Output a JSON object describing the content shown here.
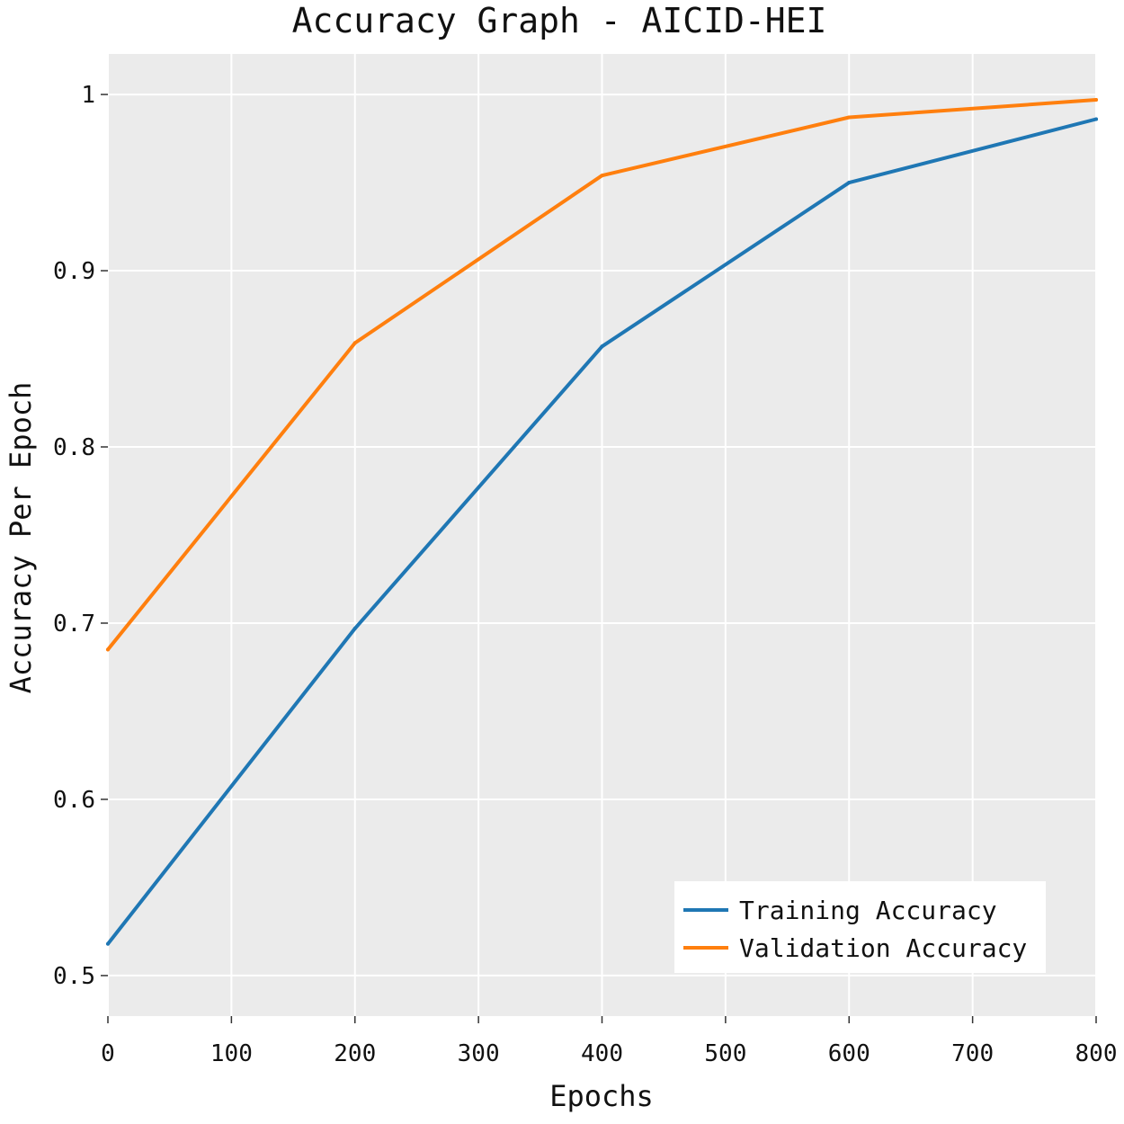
{
  "chart_data": {
    "type": "line",
    "title": "Accuracy Graph - AICID-HEI",
    "xlabel": "Epochs",
    "ylabel": "Accuracy Per Epoch",
    "xlim": [
      0,
      800
    ],
    "ylim": [
      0.477,
      1.023
    ],
    "x_ticks": [
      0,
      100,
      200,
      300,
      400,
      500,
      600,
      700,
      800
    ],
    "y_ticks": [
      0.5,
      0.6,
      0.7,
      0.8,
      0.9,
      1
    ],
    "x_tick_labels": [
      "0",
      "100",
      "200",
      "300",
      "400",
      "500",
      "600",
      "700",
      "800"
    ],
    "y_tick_labels": [
      "0.5",
      "0.6",
      "0.7",
      "0.8",
      "0.9",
      "1"
    ],
    "grid": true,
    "background": "#ebebeb",
    "legend_position": "bottom-right",
    "x": [
      0,
      200,
      400,
      600,
      800
    ],
    "series": [
      {
        "name": "Training Accuracy",
        "color": "#1f77b4",
        "values": [
          0.518,
          0.697,
          0.857,
          0.95,
          0.986
        ]
      },
      {
        "name": "Validation Accuracy",
        "color": "#ff7f0e",
        "values": [
          0.685,
          0.859,
          0.954,
          0.987,
          0.997
        ]
      }
    ]
  }
}
